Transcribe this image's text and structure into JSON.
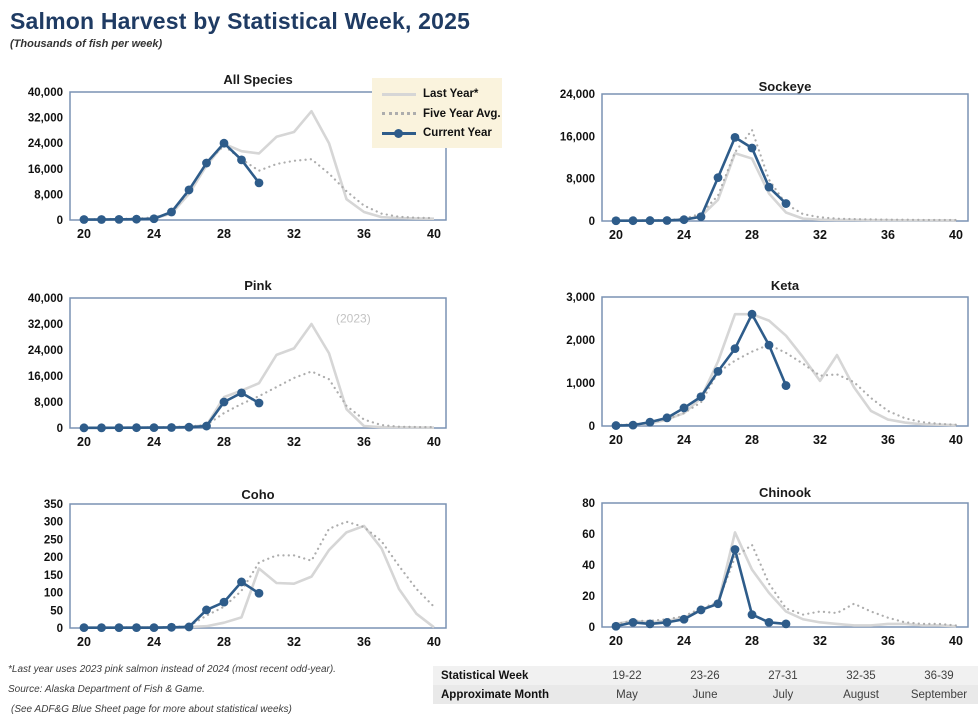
{
  "header": {
    "title": "Salmon Harvest by Statistical Week, 2025",
    "subtitle": "(Thousands of fish per week)"
  },
  "colors": {
    "title_navy": "#1f3b63",
    "current_year_blue": "#2e5c8a",
    "last_year_gray": "#d6d6d6",
    "five_year_avg_gray": "#adadad",
    "plot_frame": "#7a92b4",
    "legend_background": "#faf3dd",
    "annotation_gray": "#c3c3c3"
  },
  "legend": {
    "items": [
      {
        "label": "Last Year*",
        "style": "last_year"
      },
      {
        "label": "Five Year Avg.",
        "style": "five_year_avg"
      },
      {
        "label": "Current Year",
        "style": "current_year"
      }
    ]
  },
  "footnotes": [
    "*Last year uses 2023 pink salmon instead of 2024 (most recent odd-year).",
    "Source: Alaska Department of Fish & Game.",
    "(See ADF&G Blue Sheet page for more about statistical weeks)"
  ],
  "week_table": {
    "rows": [
      {
        "label": "Statistical Week",
        "values": [
          "19-22",
          "23-26",
          "27-31",
          "32-35",
          "36-39"
        ]
      },
      {
        "label": "Approximate Month",
        "values": [
          "May",
          "June",
          "July",
          "August",
          "September"
        ]
      }
    ]
  },
  "chart_data": [
    {
      "type": "line",
      "title": "All Species",
      "ylim": [
        0,
        40000
      ],
      "yticks": [
        0,
        8000,
        16000,
        24000,
        32000,
        40000
      ],
      "xticks": [
        20,
        24,
        28,
        32,
        36,
        40
      ],
      "x_full": [
        20,
        21,
        22,
        23,
        24,
        25,
        26,
        27,
        28,
        29,
        30,
        31,
        32,
        33,
        34,
        35,
        36,
        37,
        38,
        39,
        40
      ],
      "x_current": [
        20,
        21,
        22,
        23,
        24,
        25,
        26,
        27,
        28,
        29,
        30
      ],
      "series": [
        {
          "name": "Last Year*",
          "style": "last_year",
          "y": [
            100,
            150,
            200,
            300,
            500,
            2000,
            8200,
            17000,
            23800,
            21500,
            20800,
            26000,
            27500,
            34000,
            24000,
            6500,
            2500,
            900,
            600,
            450,
            400
          ]
        },
        {
          "name": "Five Year Avg.",
          "style": "five_year_avg",
          "y": [
            200,
            250,
            350,
            450,
            800,
            2200,
            9000,
            18000,
            23200,
            19000,
            15400,
            17500,
            18500,
            19000,
            14500,
            9000,
            4500,
            2000,
            1000,
            700,
            600
          ]
        },
        {
          "name": "Current Year",
          "style": "current_year",
          "y": [
            150,
            150,
            200,
            250,
            400,
            2500,
            9400,
            17800,
            24000,
            18800,
            11600
          ]
        }
      ],
      "annotation": null
    },
    {
      "type": "line",
      "title": "Sockeye",
      "ylim": [
        0,
        24000
      ],
      "yticks": [
        0,
        8000,
        16000,
        24000
      ],
      "xticks": [
        20,
        24,
        28,
        32,
        36,
        40
      ],
      "x_full": [
        20,
        21,
        22,
        23,
        24,
        25,
        26,
        27,
        28,
        29,
        30,
        31,
        32,
        33,
        34,
        35,
        36,
        37,
        38,
        39,
        40
      ],
      "x_current": [
        20,
        21,
        22,
        23,
        24,
        25,
        26,
        27,
        28,
        29,
        30
      ],
      "series": [
        {
          "name": "Last Year*",
          "style": "last_year",
          "y": [
            50,
            60,
            80,
            120,
            300,
            900,
            4000,
            12800,
            11800,
            5200,
            1600,
            450,
            250,
            200,
            200,
            150,
            150,
            120,
            120,
            100,
            100
          ]
        },
        {
          "name": "Five Year Avg.",
          "style": "five_year_avg",
          "y": [
            80,
            100,
            120,
            200,
            400,
            1400,
            4800,
            13000,
            17200,
            7800,
            3200,
            1300,
            700,
            450,
            350,
            300,
            250,
            250,
            200,
            200,
            200
          ]
        },
        {
          "name": "Current Year",
          "style": "current_year",
          "y": [
            50,
            60,
            80,
            100,
            250,
            800,
            8200,
            15800,
            13800,
            6400,
            3300
          ]
        }
      ],
      "annotation": null
    },
    {
      "type": "line",
      "title": "Pink",
      "ylim": [
        0,
        40000
      ],
      "yticks": [
        0,
        8000,
        16000,
        24000,
        32000,
        40000
      ],
      "xticks": [
        20,
        24,
        28,
        32,
        36,
        40
      ],
      "x_full": [
        20,
        21,
        22,
        23,
        24,
        25,
        26,
        27,
        28,
        29,
        30,
        31,
        32,
        33,
        34,
        35,
        36,
        37,
        38,
        39,
        40
      ],
      "x_current": [
        20,
        21,
        22,
        23,
        24,
        25,
        26,
        27,
        28,
        29,
        30
      ],
      "series": [
        {
          "name": "Last Year*",
          "style": "last_year",
          "y": [
            50,
            50,
            80,
            100,
            150,
            200,
            400,
            800,
            9500,
            11500,
            13800,
            22500,
            24500,
            32000,
            23000,
            5800,
            600,
            250,
            200,
            150,
            150
          ]
        },
        {
          "name": "Five Year Avg.",
          "style": "five_year_avg",
          "y": [
            50,
            80,
            100,
            150,
            200,
            300,
            500,
            900,
            4600,
            7400,
            9800,
            12600,
            15400,
            17400,
            15000,
            6800,
            2600,
            900,
            400,
            300,
            250
          ]
        },
        {
          "name": "Current Year",
          "style": "current_year",
          "y": [
            50,
            50,
            80,
            100,
            120,
            150,
            250,
            600,
            8000,
            10800,
            7700
          ]
        }
      ],
      "annotation": {
        "text": "(2023)",
        "x": 34.4,
        "y": 32500
      }
    },
    {
      "type": "line",
      "title": "Keta",
      "ylim": [
        0,
        3000
      ],
      "yticks": [
        0,
        1000,
        2000,
        3000
      ],
      "xticks": [
        20,
        24,
        28,
        32,
        36,
        40
      ],
      "x_full": [
        20,
        21,
        22,
        23,
        24,
        25,
        26,
        27,
        28,
        29,
        30,
        31,
        32,
        33,
        34,
        35,
        36,
        37,
        38,
        39,
        40
      ],
      "x_current": [
        20,
        21,
        22,
        23,
        24,
        25,
        26,
        27,
        28,
        29,
        30
      ],
      "series": [
        {
          "name": "Last Year*",
          "style": "last_year",
          "y": [
            10,
            30,
            60,
            150,
            300,
            650,
            1500,
            2600,
            2600,
            2450,
            2100,
            1600,
            1050,
            1650,
            900,
            350,
            150,
            80,
            40,
            30,
            20
          ]
        },
        {
          "name": "Five Year Avg.",
          "style": "five_year_avg",
          "y": [
            20,
            40,
            80,
            160,
            300,
            550,
            1250,
            1520,
            1730,
            1890,
            1700,
            1450,
            1170,
            1200,
            1020,
            650,
            350,
            180,
            90,
            50,
            30
          ]
        },
        {
          "name": "Current Year",
          "style": "current_year",
          "y": [
            10,
            20,
            90,
            190,
            420,
            680,
            1270,
            1800,
            2600,
            1880,
            940
          ]
        }
      ],
      "annotation": null
    },
    {
      "type": "line",
      "title": "Coho",
      "ylim": [
        0,
        350
      ],
      "yticks": [
        0,
        50,
        100,
        150,
        200,
        250,
        300,
        350
      ],
      "xticks": [
        20,
        24,
        28,
        32,
        36,
        40
      ],
      "x_full": [
        20,
        21,
        22,
        23,
        24,
        25,
        26,
        27,
        28,
        29,
        30,
        31,
        32,
        33,
        34,
        35,
        36,
        37,
        38,
        39,
        40
      ],
      "x_current": [
        20,
        21,
        22,
        23,
        24,
        25,
        26,
        27,
        28,
        29,
        30
      ],
      "series": [
        {
          "name": "Last Year*",
          "style": "last_year",
          "y": [
            1,
            1,
            1,
            2,
            2,
            2,
            3,
            5,
            15,
            30,
            168,
            127,
            125,
            145,
            220,
            270,
            288,
            225,
            110,
            40,
            2
          ]
        },
        {
          "name": "Five Year Avg.",
          "style": "five_year_avg",
          "y": [
            1,
            1,
            2,
            2,
            2,
            3,
            5,
            35,
            60,
            105,
            185,
            205,
            205,
            190,
            280,
            300,
            285,
            245,
            175,
            110,
            60
          ]
        },
        {
          "name": "Current Year",
          "style": "current_year",
          "y": [
            1,
            1,
            1,
            1,
            1,
            2,
            3,
            51,
            73,
            130,
            98
          ]
        }
      ],
      "annotation": null
    },
    {
      "type": "line",
      "title": "Chinook",
      "ylim": [
        0,
        80
      ],
      "yticks": [
        0,
        20,
        40,
        60,
        80
      ],
      "xticks": [
        20,
        24,
        28,
        32,
        36,
        40
      ],
      "x_full": [
        20,
        21,
        22,
        23,
        24,
        25,
        26,
        27,
        28,
        29,
        30,
        31,
        32,
        33,
        34,
        35,
        36,
        37,
        38,
        39,
        40
      ],
      "x_current": [
        20,
        21,
        22,
        23,
        24,
        25,
        26,
        27,
        28,
        29,
        30
      ],
      "series": [
        {
          "name": "Last Year*",
          "style": "last_year",
          "y": [
            2,
            4,
            3,
            4,
            6,
            11,
            15,
            61,
            37,
            22,
            10,
            5,
            3,
            2,
            1,
            1,
            2,
            2,
            1,
            1,
            0.5
          ]
        },
        {
          "name": "Five Year Avg.",
          "style": "five_year_avg",
          "y": [
            2,
            4,
            4,
            5,
            7,
            12,
            16,
            45,
            53,
            28,
            12,
            8,
            10,
            9,
            15,
            10,
            6,
            3,
            2,
            2,
            1
          ]
        },
        {
          "name": "Current Year",
          "style": "current_year",
          "y": [
            0.5,
            3,
            2,
            3,
            5,
            11,
            15,
            50,
            8,
            3,
            2
          ]
        }
      ],
      "annotation": null
    }
  ]
}
